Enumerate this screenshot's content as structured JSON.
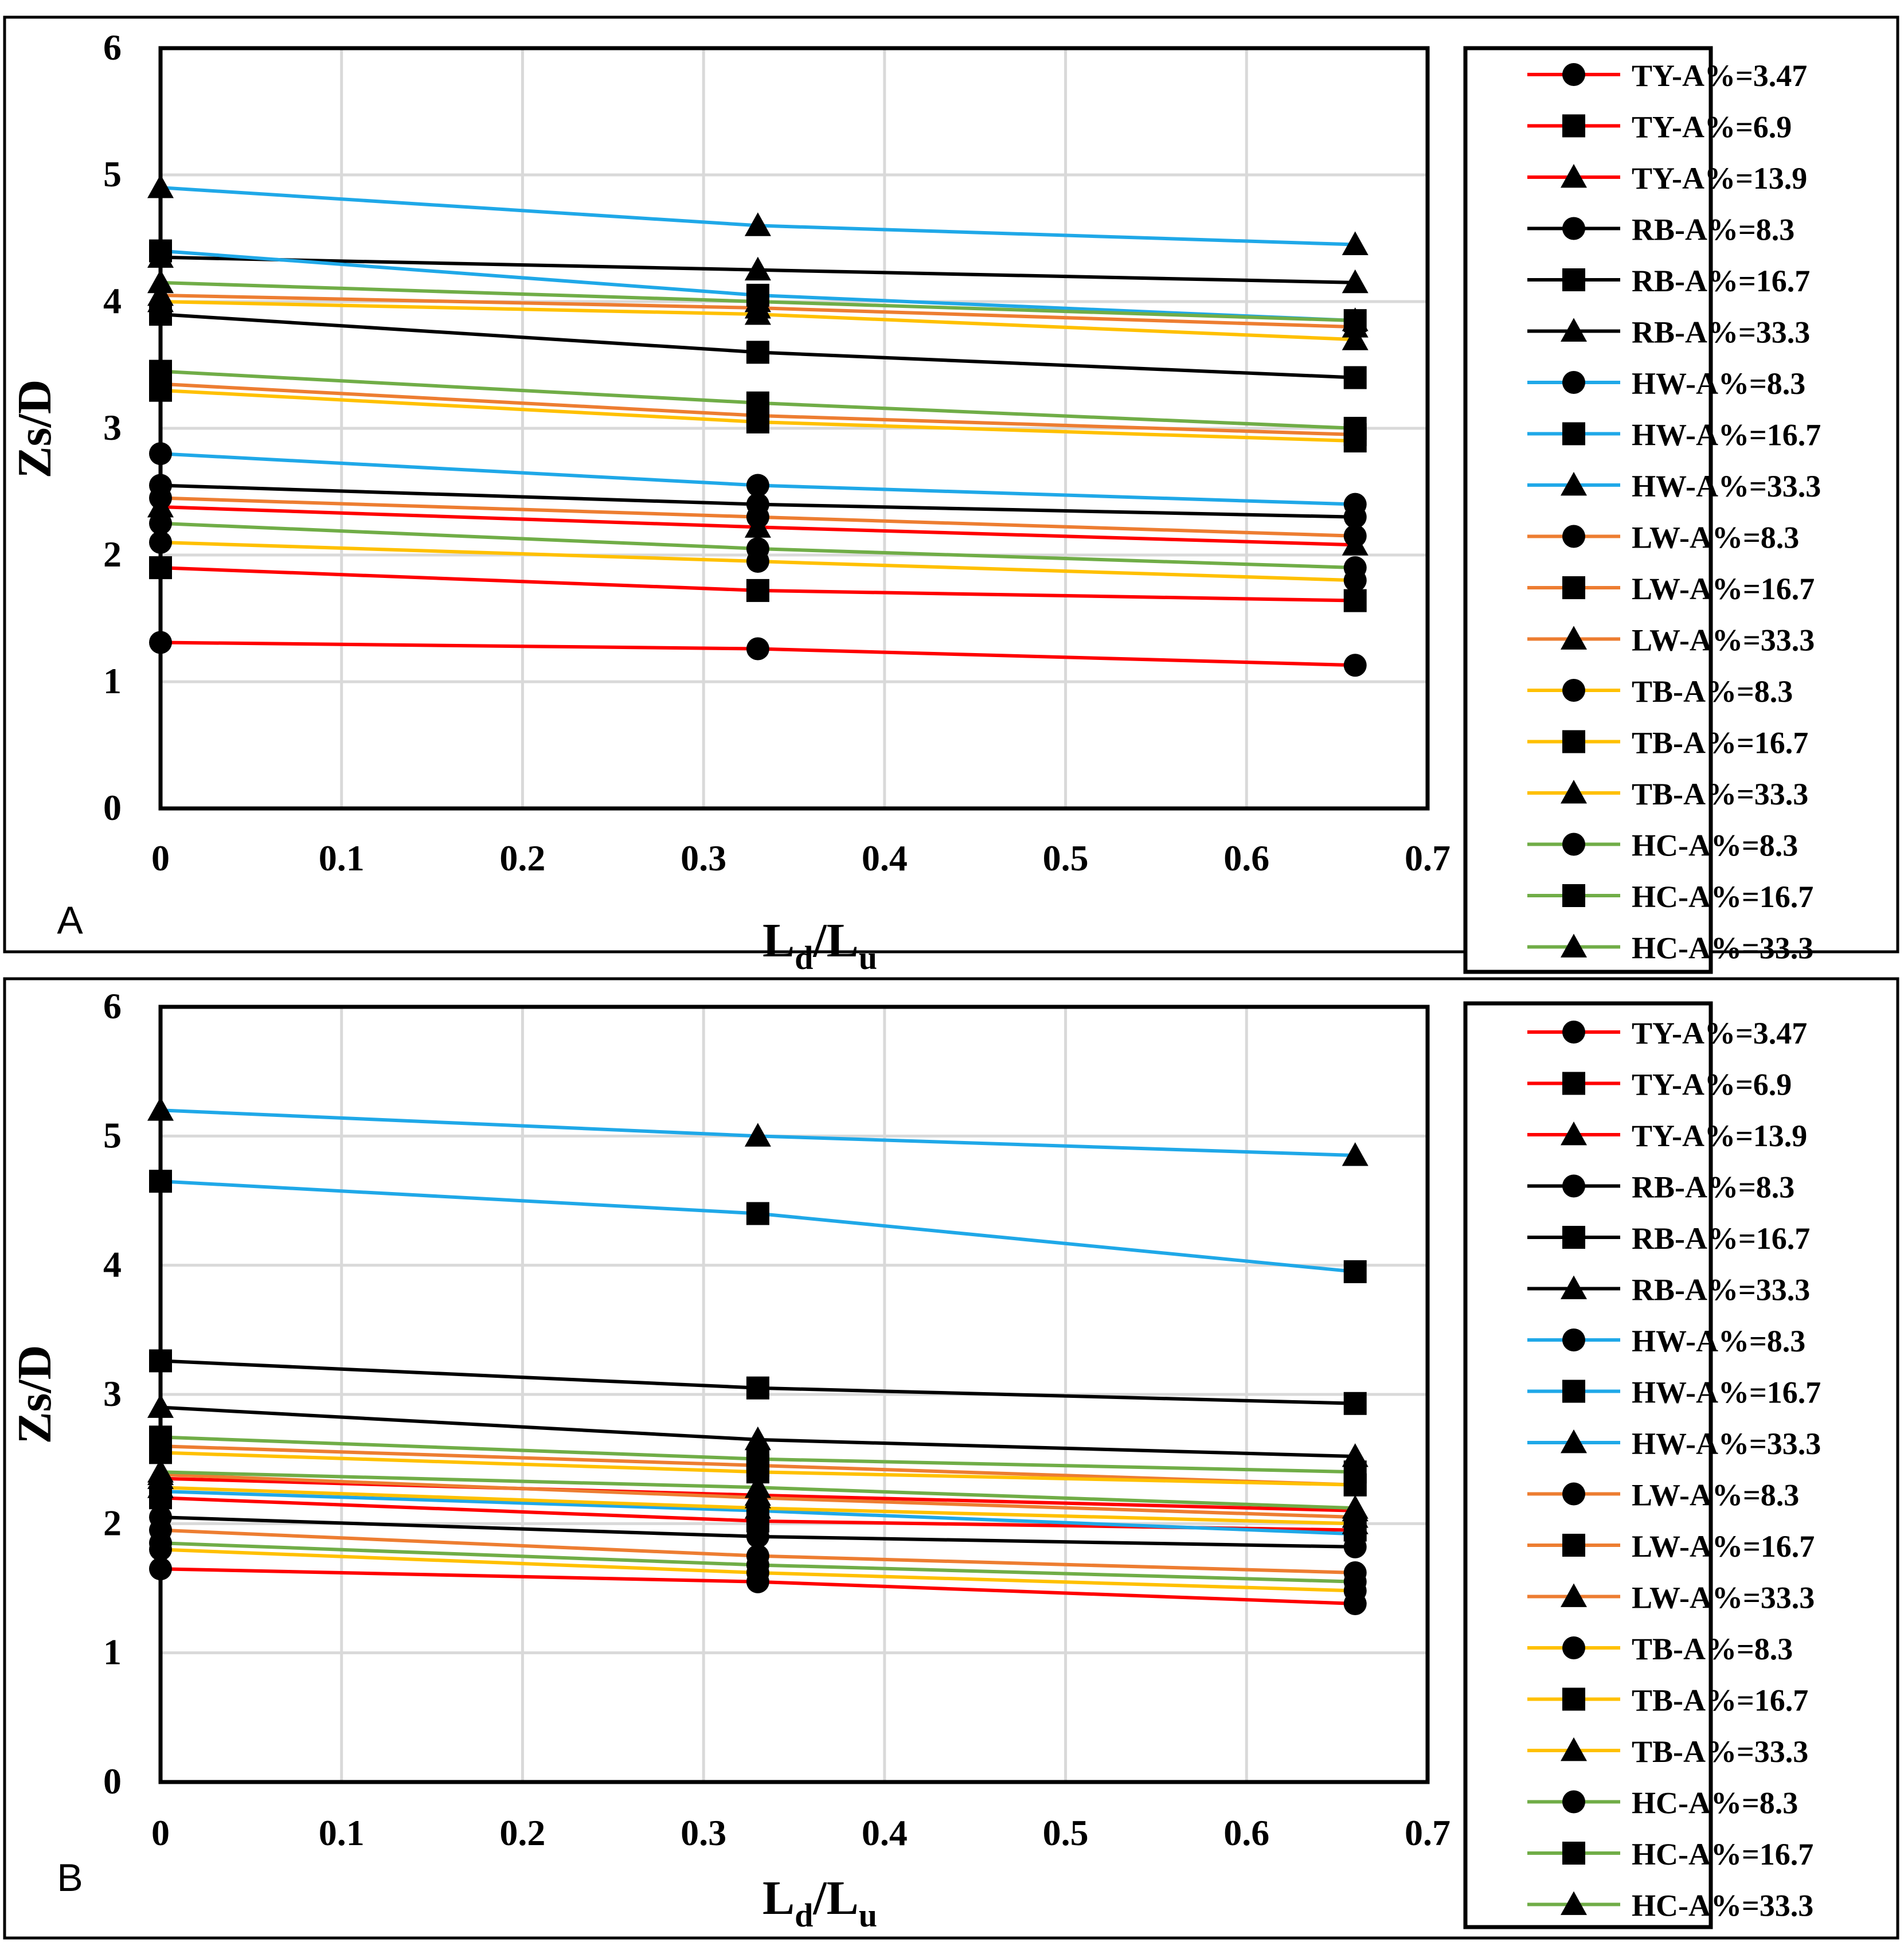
{
  "chart_data": [
    {
      "type": "line",
      "panel_label": "A",
      "xlabel": "Ld/Lu",
      "xlabel_main": "L",
      "xlabel_sub1": "d",
      "xlabel_sep": "/L",
      "xlabel_sub2": "u",
      "ylabel": "Zs/D",
      "xlim": [
        0,
        0.7
      ],
      "ylim": [
        0,
        6
      ],
      "x_ticks": [
        "0",
        "0.1",
        "0.2",
        "0.3",
        "0.4",
        "0.5",
        "0.6",
        "0.7"
      ],
      "y_ticks": [
        "0",
        "1",
        "2",
        "3",
        "4",
        "5",
        "6"
      ],
      "grid": true,
      "legend": "right",
      "x": [
        0,
        0.33,
        0.66
      ],
      "series": [
        {
          "name": "TY-A%=3.47",
          "color": "#ff0000",
          "marker": "circle",
          "values": [
            1.31,
            1.26,
            1.13
          ]
        },
        {
          "name": "TY-A%=6.9",
          "color": "#ff0000",
          "marker": "square",
          "values": [
            1.9,
            1.72,
            1.64
          ]
        },
        {
          "name": "TY-A%=13.9",
          "color": "#ff0000",
          "marker": "triangle",
          "values": [
            2.38,
            2.22,
            2.08
          ]
        },
        {
          "name": "RB-A%=8.3",
          "color": "#000000",
          "marker": "circle",
          "values": [
            2.55,
            2.4,
            2.3
          ]
        },
        {
          "name": "RB-A%=16.7",
          "color": "#000000",
          "marker": "square",
          "values": [
            3.9,
            3.6,
            3.4
          ]
        },
        {
          "name": "RB-A%=33.3",
          "color": "#000000",
          "marker": "triangle",
          "values": [
            4.35,
            4.25,
            4.15
          ]
        },
        {
          "name": "HW-A%=8.3",
          "color": "#1fa8e8",
          "marker": "circle",
          "values": [
            2.8,
            2.55,
            2.4
          ]
        },
        {
          "name": "HW-A%=16.7",
          "color": "#1fa8e8",
          "marker": "square",
          "values": [
            4.4,
            4.05,
            3.85
          ]
        },
        {
          "name": "HW-A%=33.3",
          "color": "#1fa8e8",
          "marker": "triangle",
          "values": [
            4.9,
            4.6,
            4.45
          ]
        },
        {
          "name": "LW-A%=8.3",
          "color": "#ed7d31",
          "marker": "circle",
          "values": [
            2.45,
            2.3,
            2.15
          ]
        },
        {
          "name": "LW-A%=16.7",
          "color": "#ed7d31",
          "marker": "square",
          "values": [
            3.35,
            3.1,
            2.95
          ]
        },
        {
          "name": "LW-A%=33.3",
          "color": "#ed7d31",
          "marker": "triangle",
          "values": [
            4.05,
            3.95,
            3.8
          ]
        },
        {
          "name": "TB-A%=8.3",
          "color": "#ffc000",
          "marker": "circle",
          "values": [
            2.1,
            1.95,
            1.8
          ]
        },
        {
          "name": "TB-A%=16.7",
          "color": "#ffc000",
          "marker": "square",
          "values": [
            3.3,
            3.05,
            2.9
          ]
        },
        {
          "name": "TB-A%=33.3",
          "color": "#ffc000",
          "marker": "triangle",
          "values": [
            4.0,
            3.9,
            3.7
          ]
        },
        {
          "name": "HC-A%=8.3",
          "color": "#70ad47",
          "marker": "circle",
          "values": [
            2.25,
            2.05,
            1.9
          ]
        },
        {
          "name": "HC-A%=16.7",
          "color": "#70ad47",
          "marker": "square",
          "values": [
            3.45,
            3.2,
            3.0
          ]
        },
        {
          "name": "HC-A%=33.3",
          "color": "#70ad47",
          "marker": "triangle",
          "values": [
            4.15,
            4.0,
            3.85
          ]
        }
      ]
    },
    {
      "type": "line",
      "panel_label": "B",
      "xlabel": "Ld/Lu",
      "xlabel_main": "L",
      "xlabel_sub1": "d",
      "xlabel_sep": "/L",
      "xlabel_sub2": "u",
      "ylabel": "Zs/D",
      "xlim": [
        0,
        0.7
      ],
      "ylim": [
        0,
        6
      ],
      "x_ticks": [
        "0",
        "0.1",
        "0.2",
        "0.3",
        "0.4",
        "0.5",
        "0.6",
        "0.7"
      ],
      "y_ticks": [
        "0",
        "1",
        "2",
        "3",
        "4",
        "5",
        "6"
      ],
      "grid": true,
      "legend": "right",
      "x": [
        0,
        0.33,
        0.66
      ],
      "series": [
        {
          "name": "TY-A%=3.47",
          "color": "#ff0000",
          "marker": "circle",
          "values": [
            1.65,
            1.55,
            1.38
          ]
        },
        {
          "name": "TY-A%=6.9",
          "color": "#ff0000",
          "marker": "square",
          "values": [
            2.2,
            2.02,
            1.95
          ]
        },
        {
          "name": "TY-A%=13.9",
          "color": "#ff0000",
          "marker": "triangle",
          "values": [
            2.35,
            2.22,
            2.1
          ]
        },
        {
          "name": "RB-A%=8.3",
          "color": "#000000",
          "marker": "circle",
          "values": [
            2.05,
            1.9,
            1.82
          ]
        },
        {
          "name": "RB-A%=16.7",
          "color": "#000000",
          "marker": "square",
          "values": [
            3.26,
            3.05,
            2.93
          ]
        },
        {
          "name": "RB-A%=33.3",
          "color": "#000000",
          "marker": "triangle",
          "values": [
            2.9,
            2.65,
            2.52
          ]
        },
        {
          "name": "HW-A%=8.3",
          "color": "#1fa8e8",
          "marker": "circle",
          "values": [
            2.25,
            2.1,
            1.92
          ]
        },
        {
          "name": "HW-A%=16.7",
          "color": "#1fa8e8",
          "marker": "square",
          "values": [
            4.65,
            4.4,
            3.95
          ]
        },
        {
          "name": "HW-A%=33.3",
          "color": "#1fa8e8",
          "marker": "triangle",
          "values": [
            5.2,
            5.0,
            4.85
          ]
        },
        {
          "name": "LW-A%=8.3",
          "color": "#ed7d31",
          "marker": "circle",
          "values": [
            1.95,
            1.75,
            1.62
          ]
        },
        {
          "name": "LW-A%=16.7",
          "color": "#ed7d31",
          "marker": "square",
          "values": [
            2.6,
            2.45,
            2.3
          ]
        },
        {
          "name": "LW-A%=33.3",
          "color": "#ed7d31",
          "marker": "triangle",
          "values": [
            2.38,
            2.2,
            2.05
          ]
        },
        {
          "name": "TB-A%=8.3",
          "color": "#ffc000",
          "marker": "circle",
          "values": [
            1.8,
            1.62,
            1.48
          ]
        },
        {
          "name": "TB-A%=16.7",
          "color": "#ffc000",
          "marker": "square",
          "values": [
            2.55,
            2.4,
            2.3
          ]
        },
        {
          "name": "TB-A%=33.3",
          "color": "#ffc000",
          "marker": "triangle",
          "values": [
            2.28,
            2.12,
            2.0
          ]
        },
        {
          "name": "HC-A%=8.3",
          "color": "#70ad47",
          "marker": "circle",
          "values": [
            1.85,
            1.68,
            1.55
          ]
        },
        {
          "name": "HC-A%=16.7",
          "color": "#70ad47",
          "marker": "square",
          "values": [
            2.67,
            2.5,
            2.4
          ]
        },
        {
          "name": "HC-A%=33.3",
          "color": "#70ad47",
          "marker": "triangle",
          "values": [
            2.4,
            2.28,
            2.12
          ]
        }
      ]
    }
  ]
}
